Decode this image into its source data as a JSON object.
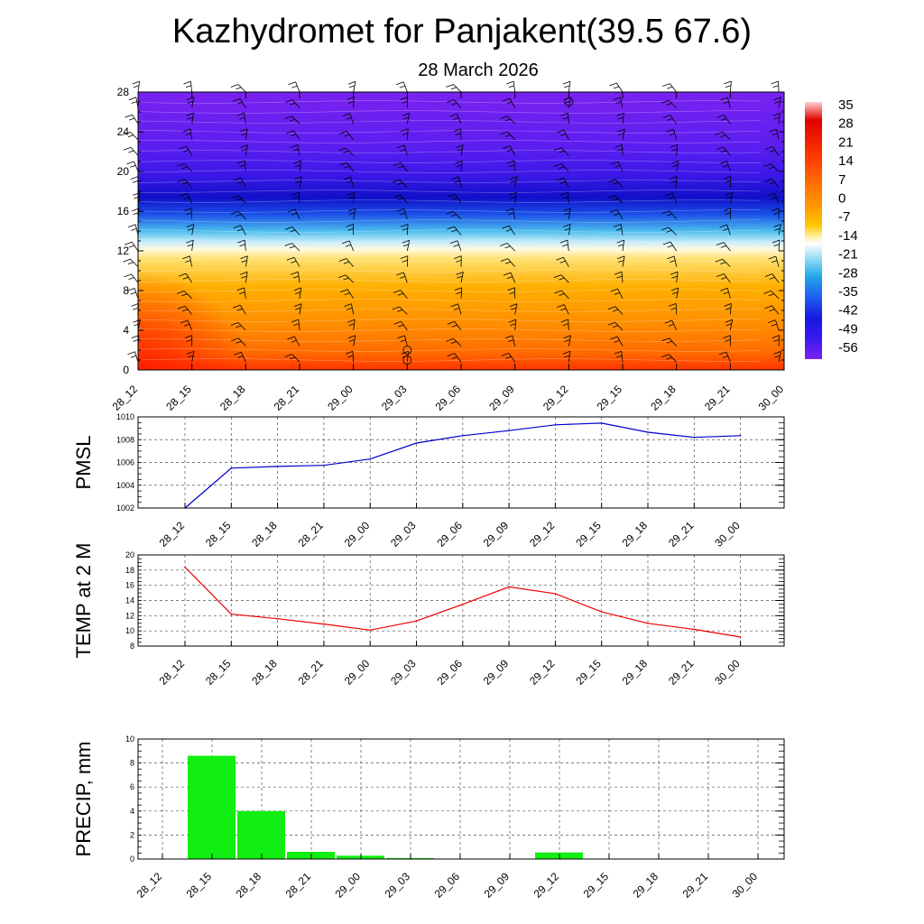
{
  "title": "Kazhydromet for Panjakent(39.5 67.6)",
  "subtitle": "28 March 2026",
  "time_labels": [
    "28_12",
    "28_15",
    "28_18",
    "28_21",
    "29_00",
    "29_03",
    "29_06",
    "29_09",
    "29_12",
    "29_15",
    "29_18",
    "29_21",
    "30_00"
  ],
  "chart_data": [
    {
      "type": "heatmap",
      "name": "cross-section",
      "description_vars": "temperature contours with wind barbs",
      "y_ticks": [
        0,
        4,
        8,
        12,
        16,
        20,
        24,
        28
      ],
      "ylim": [
        0,
        28
      ],
      "colorbar_labels": [
        "35",
        "28",
        "21",
        "14",
        "7",
        "0",
        "-7",
        "-14",
        "-21",
        "-28",
        "-35",
        "-42",
        "-49",
        "-56"
      ],
      "colorbar_stops": [
        "#ffd0d0",
        "#e00000",
        "#ff3b00",
        "#ff6e00",
        "#ff9800",
        "#ffc000",
        "#ffe896",
        "#ffffff",
        "#7fd6f4",
        "#1fa8e8",
        "#1f68f0",
        "#1818e0",
        "#3a18f0",
        "#7a22f0"
      ]
    },
    {
      "type": "line",
      "name": "PMSL",
      "ylabel": "PMSL",
      "ylim": [
        1002,
        1010
      ],
      "y_ticks": [
        1002,
        1004,
        1006,
        1008,
        1010
      ],
      "color": "#0000cc",
      "values": [
        1002.0,
        1005.5,
        1005.65,
        1005.75,
        1006.3,
        1007.7,
        1008.35,
        1008.8,
        1009.3,
        1009.45,
        1008.65,
        1008.2,
        1008.35
      ]
    },
    {
      "type": "line",
      "name": "TEMP at 2 M",
      "ylabel": "TEMP at 2 M",
      "ylim": [
        8,
        20
      ],
      "y_ticks": [
        8,
        10,
        12,
        14,
        16,
        18,
        20
      ],
      "color": "#ee0000",
      "values": [
        18.4,
        12.2,
        11.6,
        10.9,
        10.1,
        11.3,
        13.5,
        15.8,
        14.9,
        12.5,
        11.0,
        10.2,
        9.2
      ]
    },
    {
      "type": "bar",
      "name": "PRECIP, mm",
      "ylabel": "PRECIP, mm",
      "ylim": [
        0,
        10
      ],
      "y_ticks": [
        0,
        2,
        4,
        6,
        8,
        10
      ],
      "color": "#11ee11",
      "categories": [
        "28_12",
        "28_15",
        "28_18",
        "28_21",
        "29_00",
        "29_03",
        "29_06",
        "29_09",
        "29_12",
        "29_15",
        "29_18",
        "29_21",
        "30_00"
      ],
      "values": [
        0,
        8.6,
        4.0,
        0.6,
        0.28,
        0.08,
        0,
        0,
        0.55,
        0.04,
        0,
        0,
        0
      ]
    }
  ]
}
